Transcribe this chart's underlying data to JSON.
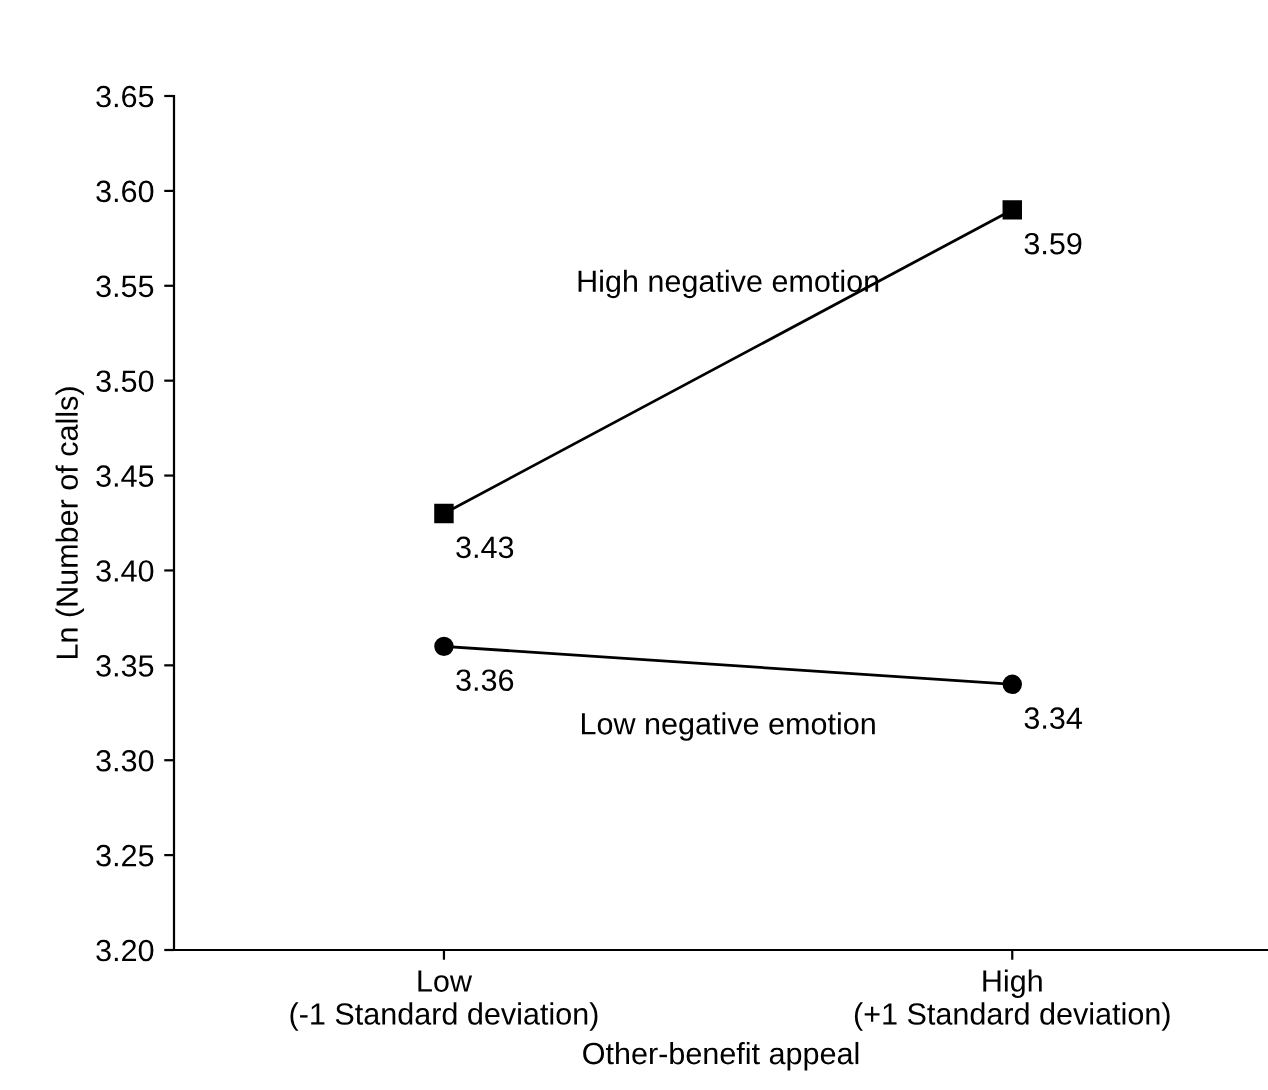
{
  "chart_data": {
    "type": "line",
    "xlabel": "Other-benefit appeal",
    "ylabel": "Ln (Number of calls)",
    "categories": [
      "Low\n(-1 Standard deviation)",
      "High\n(+1 Standard deviation)"
    ],
    "series": [
      {
        "name": "High negative emotion",
        "color": "#000000",
        "values": [
          3.43,
          3.59
        ],
        "marker": "square"
      },
      {
        "name": "Low negative emotion",
        "color": "#000000",
        "values": [
          3.36,
          3.34
        ],
        "marker": "circle"
      }
    ],
    "ylim": [
      3.2,
      3.65
    ],
    "yticks": [
      {
        "value": 3.2,
        "label": "3.20"
      },
      {
        "value": 3.25,
        "label": "3.25"
      },
      {
        "value": 3.3,
        "label": "3.30"
      },
      {
        "value": 3.35,
        "label": "3.35"
      },
      {
        "value": 3.4,
        "label": "3.40"
      },
      {
        "value": 3.45,
        "label": "3.45"
      },
      {
        "value": 3.5,
        "label": "3.50"
      },
      {
        "value": 3.55,
        "label": "3.55"
      },
      {
        "value": 3.6,
        "label": "3.60"
      },
      {
        "value": 3.65,
        "label": "3.65"
      }
    ],
    "data_labels": true,
    "grid": false,
    "legend": false,
    "line_style": "solid"
  }
}
